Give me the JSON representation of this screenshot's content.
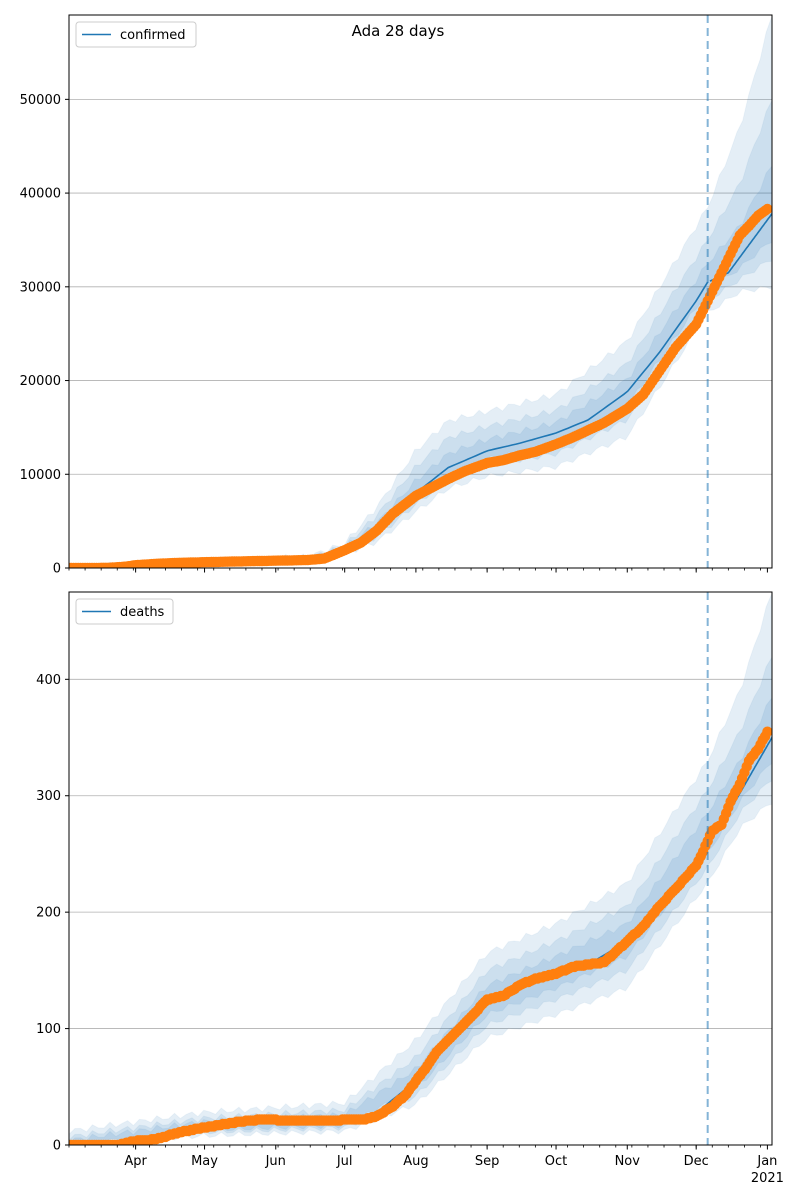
{
  "figure_title": "Ada 28 days",
  "colors": {
    "model": "#1f77b4",
    "observed": "#ff7f0e",
    "band": "#1f77b4",
    "grid": "#b0b0b0",
    "forecast_line": "#1f77b4"
  },
  "chart_data": [
    {
      "type": "line",
      "title": "Ada 28 days",
      "series_name": "confirmed",
      "legend_position": "top-left",
      "grid": "y",
      "x_axis": {
        "type": "date",
        "range": [
          "2020-03-03",
          "2021-01-03"
        ],
        "major_ticks": [
          {
            "date": "2020-04-01",
            "label": "Apr"
          },
          {
            "date": "2020-05-01",
            "label": "May"
          },
          {
            "date": "2020-06-01",
            "label": "Jun"
          },
          {
            "date": "2020-07-01",
            "label": "Jul"
          },
          {
            "date": "2020-08-01",
            "label": "Aug"
          },
          {
            "date": "2020-09-01",
            "label": "Sep"
          },
          {
            "date": "2020-10-01",
            "label": "Oct"
          },
          {
            "date": "2020-11-01",
            "label": "Nov"
          },
          {
            "date": "2020-12-01",
            "label": "Dec"
          },
          {
            "date": "2021-01-01",
            "label": "Jan",
            "sublabel": "2021"
          }
        ],
        "tick_labels_shown": false
      },
      "forecast_start": "2020-12-06",
      "ylim": [
        0,
        59000
      ],
      "yticks": [
        0,
        10000,
        20000,
        30000,
        40000,
        50000
      ],
      "model_line": [
        [
          "2020-03-03",
          0
        ],
        [
          "2020-04-01",
          250
        ],
        [
          "2020-05-01",
          600
        ],
        [
          "2020-06-01",
          750
        ],
        [
          "2020-06-15",
          900
        ],
        [
          "2020-07-01",
          2000
        ],
        [
          "2020-07-15",
          4200
        ],
        [
          "2020-08-01",
          8000
        ],
        [
          "2020-08-15",
          10700
        ],
        [
          "2020-09-01",
          12500
        ],
        [
          "2020-09-15",
          13300
        ],
        [
          "2020-10-01",
          14400
        ],
        [
          "2020-10-15",
          15800
        ],
        [
          "2020-11-01",
          18800
        ],
        [
          "2020-11-15",
          23000
        ],
        [
          "2020-12-01",
          28500
        ],
        [
          "2020-12-06",
          30500
        ],
        [
          "2020-12-15",
          31500
        ],
        [
          "2021-01-03",
          37800
        ]
      ],
      "bands": {
        "x": [
          "2020-03-03",
          "2020-06-15",
          "2020-07-01",
          "2020-07-15",
          "2020-08-01",
          "2020-08-15",
          "2020-09-01",
          "2020-10-01",
          "2020-11-01",
          "2020-12-06",
          "2020-12-20",
          "2021-01-03"
        ],
        "center": [
          0,
          900,
          2000,
          4200,
          8000,
          10700,
          12500,
          14400,
          18800,
          30500,
          33500,
          37800
        ],
        "outer_upper": [
          100,
          1200,
          2600,
          6500,
          12500,
          15700,
          16700,
          18500,
          24200,
          38500,
          47000,
          59000
        ],
        "outer_lower": [
          0,
          700,
          1500,
          2800,
          6000,
          8500,
          9800,
          10800,
          14000,
          27200,
          29500,
          30000
        ],
        "mid_upper": [
          50,
          1050,
          2350,
          5600,
          10800,
          13900,
          15100,
          16800,
          21800,
          35000,
          41000,
          50000
        ],
        "mid_lower": [
          0,
          800,
          1700,
          3300,
          6800,
          9400,
          10900,
          12200,
          15800,
          28500,
          30800,
          33000
        ],
        "inner_upper": [
          20,
          950,
          2150,
          4800,
          9300,
          12200,
          13700,
          15500,
          20100,
          32500,
          36500,
          43000
        ],
        "inner_lower": [
          0,
          850,
          1850,
          3700,
          7300,
          10000,
          11600,
          13200,
          17300,
          29500,
          32000,
          35000
        ]
      },
      "observed": [
        [
          "2020-03-03",
          0
        ],
        [
          "2020-03-20",
          20
        ],
        [
          "2020-03-28",
          150
        ],
        [
          "2020-04-01",
          300
        ],
        [
          "2020-04-10",
          450
        ],
        [
          "2020-04-20",
          550
        ],
        [
          "2020-05-01",
          620
        ],
        [
          "2020-05-15",
          700
        ],
        [
          "2020-06-01",
          780
        ],
        [
          "2020-06-15",
          850
        ],
        [
          "2020-06-22",
          1000
        ],
        [
          "2020-07-01",
          1900
        ],
        [
          "2020-07-08",
          2700
        ],
        [
          "2020-07-15",
          4000
        ],
        [
          "2020-07-22",
          5800
        ],
        [
          "2020-08-01",
          7700
        ],
        [
          "2020-08-08",
          8600
        ],
        [
          "2020-08-15",
          9500
        ],
        [
          "2020-08-22",
          10300
        ],
        [
          "2020-09-01",
          11200
        ],
        [
          "2020-09-08",
          11500
        ],
        [
          "2020-09-15",
          12000
        ],
        [
          "2020-09-22",
          12400
        ],
        [
          "2020-10-01",
          13200
        ],
        [
          "2020-10-08",
          13900
        ],
        [
          "2020-10-15",
          14700
        ],
        [
          "2020-10-22",
          15500
        ],
        [
          "2020-11-01",
          17000
        ],
        [
          "2020-11-08",
          18500
        ],
        [
          "2020-11-15",
          21000
        ],
        [
          "2020-11-22",
          23500
        ],
        [
          "2020-12-01",
          26000
        ],
        [
          "2020-12-04",
          27500
        ],
        [
          "2020-12-08",
          29500
        ],
        [
          "2020-12-12",
          31500
        ],
        [
          "2020-12-16",
          33500
        ],
        [
          "2020-12-20",
          35500
        ],
        [
          "2020-12-24",
          36500
        ],
        [
          "2020-12-28",
          37600
        ],
        [
          "2021-01-01",
          38300
        ]
      ]
    },
    {
      "type": "line",
      "series_name": "deaths",
      "legend_position": "top-left",
      "grid": "y",
      "x_axis": {
        "type": "date",
        "range": [
          "2020-03-03",
          "2021-01-03"
        ],
        "major_ticks": [
          {
            "date": "2020-04-01",
            "label": "Apr"
          },
          {
            "date": "2020-05-01",
            "label": "May"
          },
          {
            "date": "2020-06-01",
            "label": "Jun"
          },
          {
            "date": "2020-07-01",
            "label": "Jul"
          },
          {
            "date": "2020-08-01",
            "label": "Aug"
          },
          {
            "date": "2020-09-01",
            "label": "Sep"
          },
          {
            "date": "2020-10-01",
            "label": "Oct"
          },
          {
            "date": "2020-11-01",
            "label": "Nov"
          },
          {
            "date": "2020-12-01",
            "label": "Dec"
          },
          {
            "date": "2021-01-01",
            "label": "Jan",
            "sublabel": "2021"
          }
        ],
        "tick_labels_shown": true
      },
      "forecast_start": "2020-12-06",
      "ylim": [
        0,
        475
      ],
      "yticks": [
        0,
        100,
        200,
        300,
        400
      ],
      "model_line": [
        [
          "2020-03-03",
          0
        ],
        [
          "2020-04-01",
          3
        ],
        [
          "2020-05-01",
          16
        ],
        [
          "2020-05-15",
          20
        ],
        [
          "2020-06-01",
          20
        ],
        [
          "2020-06-15",
          20
        ],
        [
          "2020-07-01",
          21
        ],
        [
          "2020-07-15",
          28
        ],
        [
          "2020-08-01",
          55
        ],
        [
          "2020-08-15",
          90
        ],
        [
          "2020-09-01",
          122
        ],
        [
          "2020-09-15",
          136
        ],
        [
          "2020-10-01",
          148
        ],
        [
          "2020-10-15",
          155
        ],
        [
          "2020-11-01",
          175
        ],
        [
          "2020-11-15",
          200
        ],
        [
          "2020-12-01",
          238
        ],
        [
          "2020-12-06",
          262
        ],
        [
          "2020-12-15",
          285
        ],
        [
          "2021-01-03",
          350
        ]
      ],
      "bands": {
        "x": [
          "2020-03-03",
          "2020-05-01",
          "2020-07-01",
          "2020-08-01",
          "2020-09-01",
          "2020-10-01",
          "2020-11-01",
          "2020-12-06",
          "2020-12-20",
          "2021-01-03"
        ],
        "center": [
          0,
          16,
          21,
          55,
          122,
          148,
          175,
          262,
          305,
          350
        ],
        "outer_upper": [
          12,
          28,
          36,
          90,
          165,
          190,
          225,
          330,
          390,
          475
        ],
        "outer_lower": [
          0,
          8,
          12,
          35,
          92,
          112,
          135,
          225,
          272,
          295
        ],
        "mid_upper": [
          7,
          23,
          30,
          75,
          150,
          175,
          205,
          305,
          355,
          420
        ],
        "mid_lower": [
          0,
          11,
          15,
          42,
          103,
          125,
          150,
          238,
          285,
          315
        ],
        "inner_upper": [
          4,
          20,
          26,
          65,
          137,
          162,
          190,
          285,
          330,
          385
        ],
        "inner_lower": [
          0,
          13,
          17,
          48,
          112,
          135,
          162,
          250,
          295,
          330
        ]
      },
      "observed": [
        [
          "2020-03-03",
          0
        ],
        [
          "2020-03-25",
          0
        ],
        [
          "2020-03-30",
          3
        ],
        [
          "2020-04-10",
          5
        ],
        [
          "2020-04-20",
          11
        ],
        [
          "2020-05-01",
          15
        ],
        [
          "2020-05-10",
          18
        ],
        [
          "2020-05-20",
          21
        ],
        [
          "2020-05-28",
          22
        ],
        [
          "2020-06-05",
          21
        ],
        [
          "2020-06-20",
          21
        ],
        [
          "2020-06-28",
          21
        ],
        [
          "2020-07-01",
          22
        ],
        [
          "2020-07-10",
          22
        ],
        [
          "2020-07-15",
          25
        ],
        [
          "2020-07-22",
          33
        ],
        [
          "2020-07-28",
          44
        ],
        [
          "2020-08-01",
          55
        ],
        [
          "2020-08-06",
          68
        ],
        [
          "2020-08-10",
          80
        ],
        [
          "2020-08-15",
          90
        ],
        [
          "2020-08-20",
          100
        ],
        [
          "2020-08-25",
          110
        ],
        [
          "2020-09-01",
          125
        ],
        [
          "2020-09-08",
          128
        ],
        [
          "2020-09-15",
          137
        ],
        [
          "2020-09-22",
          143
        ],
        [
          "2020-10-01",
          147
        ],
        [
          "2020-10-08",
          153
        ],
        [
          "2020-10-15",
          155
        ],
        [
          "2020-10-22",
          157
        ],
        [
          "2020-11-01",
          175
        ],
        [
          "2020-11-08",
          188
        ],
        [
          "2020-11-15",
          205
        ],
        [
          "2020-11-22",
          220
        ],
        [
          "2020-12-01",
          240
        ],
        [
          "2020-12-04",
          252
        ],
        [
          "2020-12-08",
          270
        ],
        [
          "2020-12-12",
          275
        ],
        [
          "2020-12-16",
          295
        ],
        [
          "2020-12-20",
          310
        ],
        [
          "2020-12-24",
          330
        ],
        [
          "2020-12-28",
          340
        ],
        [
          "2021-01-01",
          355
        ]
      ]
    }
  ]
}
